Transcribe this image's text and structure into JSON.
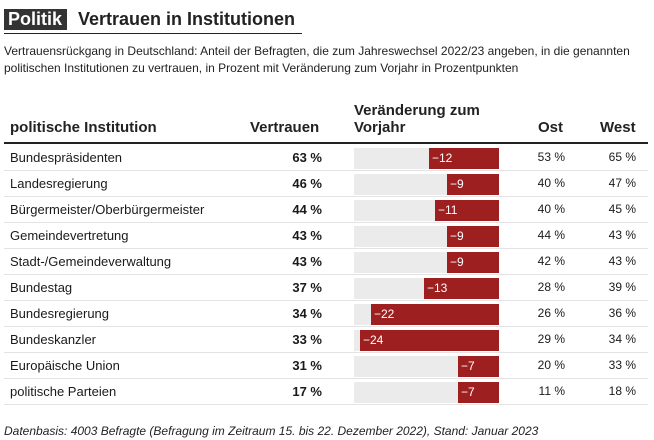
{
  "header": {
    "category": "Politik",
    "title": "Vertrauen in Institutionen"
  },
  "subtitle": "Vertrauensrückgang in Deutschland: Anteil der Befragten, die zum Jahreswechsel 2022/23 angeben, in die genannten politischen Institutionen zu vertrauen, in Prozent mit Veränderung zum Vorjahr in Prozentpunkten",
  "colors": {
    "bar": "#9d1f1f",
    "track": "#ebebeb",
    "category_bg": "#333333"
  },
  "chart_data": {
    "type": "table",
    "columns": [
      "politische Institution",
      "Vertrauen",
      "Veränderung zum Vorjahr",
      "Ost",
      "West"
    ],
    "change_range": [
      -25,
      0
    ],
    "rows": [
      {
        "institution": "Bundespräsidenten",
        "trust": "63 %",
        "change": -12,
        "change_label": "−12",
        "ost": "53 %",
        "west": "65 %"
      },
      {
        "institution": "Landesregierung",
        "trust": "46 %",
        "change": -9,
        "change_label": "−9",
        "ost": "40 %",
        "west": "47 %"
      },
      {
        "institution": "Bürgermeister/Oberbürgermeister",
        "trust": "44 %",
        "change": -11,
        "change_label": "−11",
        "ost": "40 %",
        "west": "45 %"
      },
      {
        "institution": "Gemeindevertretung",
        "trust": "43 %",
        "change": -9,
        "change_label": "−9",
        "ost": "44 %",
        "west": "43 %"
      },
      {
        "institution": "Stadt-/Gemeindeverwaltung",
        "trust": "43 %",
        "change": -9,
        "change_label": "−9",
        "ost": "42 %",
        "west": "43 %"
      },
      {
        "institution": "Bundestag",
        "trust": "37 %",
        "change": -13,
        "change_label": "−13",
        "ost": "28 %",
        "west": "39 %"
      },
      {
        "institution": "Bundesregierung",
        "trust": "34 %",
        "change": -22,
        "change_label": "−22",
        "ost": "26 %",
        "west": "36 %"
      },
      {
        "institution": "Bundeskanzler",
        "trust": "33 %",
        "change": -24,
        "change_label": "−24",
        "ost": "29 %",
        "west": "34 %"
      },
      {
        "institution": "Europäische Union",
        "trust": "31 %",
        "change": -7,
        "change_label": "−7",
        "ost": "20 %",
        "west": "33 %"
      },
      {
        "institution": "politische Parteien",
        "trust": "17 %",
        "change": -7,
        "change_label": "−7",
        "ost": "11 %",
        "west": "18 %"
      }
    ]
  },
  "footer": "Datenbasis: 4003 Befragte (Befragung im Zeitraum 15. bis 22. Dezember 2022), Stand: Januar 2023"
}
